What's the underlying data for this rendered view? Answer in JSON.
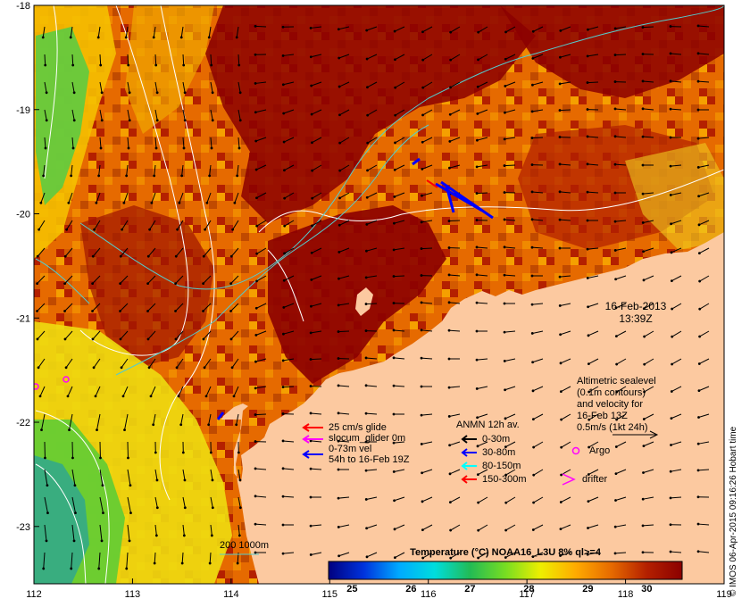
{
  "map": {
    "x_axis_ticks": [
      "112",
      "113",
      "114",
      "115",
      "116",
      "117",
      "118",
      "119"
    ],
    "y_axis_ticks": [
      "-18",
      "-19",
      "-20",
      "-21",
      "-22",
      "-23"
    ],
    "lon_range": [
      112,
      119
    ],
    "lat_range": [
      -23.55,
      -18
    ],
    "land_color": "#fcc9a0",
    "date_label": "16-Feb-2013",
    "time_label": "13:39Z"
  },
  "altimetry_note": {
    "lines": [
      "Altimetric sealevel",
      "(0.1m contours)",
      "and velocity for",
      "16-Feb 13Z",
      "0.5m/s (1kt 24h)"
    ]
  },
  "glider_legend": [
    {
      "label": "25 cm/s glide",
      "color": "#ff0000"
    },
    {
      "label": "slocum_glider 0m",
      "color": "#ff00ff"
    },
    {
      "label": "0-73m vel",
      "color": ""
    },
    {
      "label": "54h to 16-Feb 19Z",
      "color": "#0000ff"
    }
  ],
  "anmn_legend": {
    "title": "ANMN 12h av.",
    "items": [
      {
        "label": "0-30m",
        "color": "#000000"
      },
      {
        "label": "30-80m",
        "color": "#0000ff"
      },
      {
        "label": "80-150m",
        "color": "#00ffff"
      },
      {
        "label": "150-300m",
        "color": "#ff0000"
      }
    ]
  },
  "markers": {
    "argo_label": "Argo",
    "argo_color": "#ff00ff",
    "drifter_label": "drifter",
    "drifter_color": "#ff00ff"
  },
  "colorbar": {
    "title": "Temperature (°C) NOAA16_L3U 8% ql>=4",
    "ticks": [
      "25",
      "26",
      "27",
      "28",
      "29",
      "30"
    ],
    "range": [
      24.6,
      30.6
    ],
    "stops": [
      "#000080",
      "#0033dd",
      "#00aaff",
      "#00dddd",
      "#22bb55",
      "#77dd22",
      "#eeee00",
      "#ffaa00",
      "#e66a00",
      "#b42000",
      "#8b0000"
    ]
  },
  "bathymetry_legend": {
    "label": "200  1000m",
    "color": "#55cccc"
  },
  "credit": "© IMOS 06-Apr-2015 09:16:26 Hobart time"
}
